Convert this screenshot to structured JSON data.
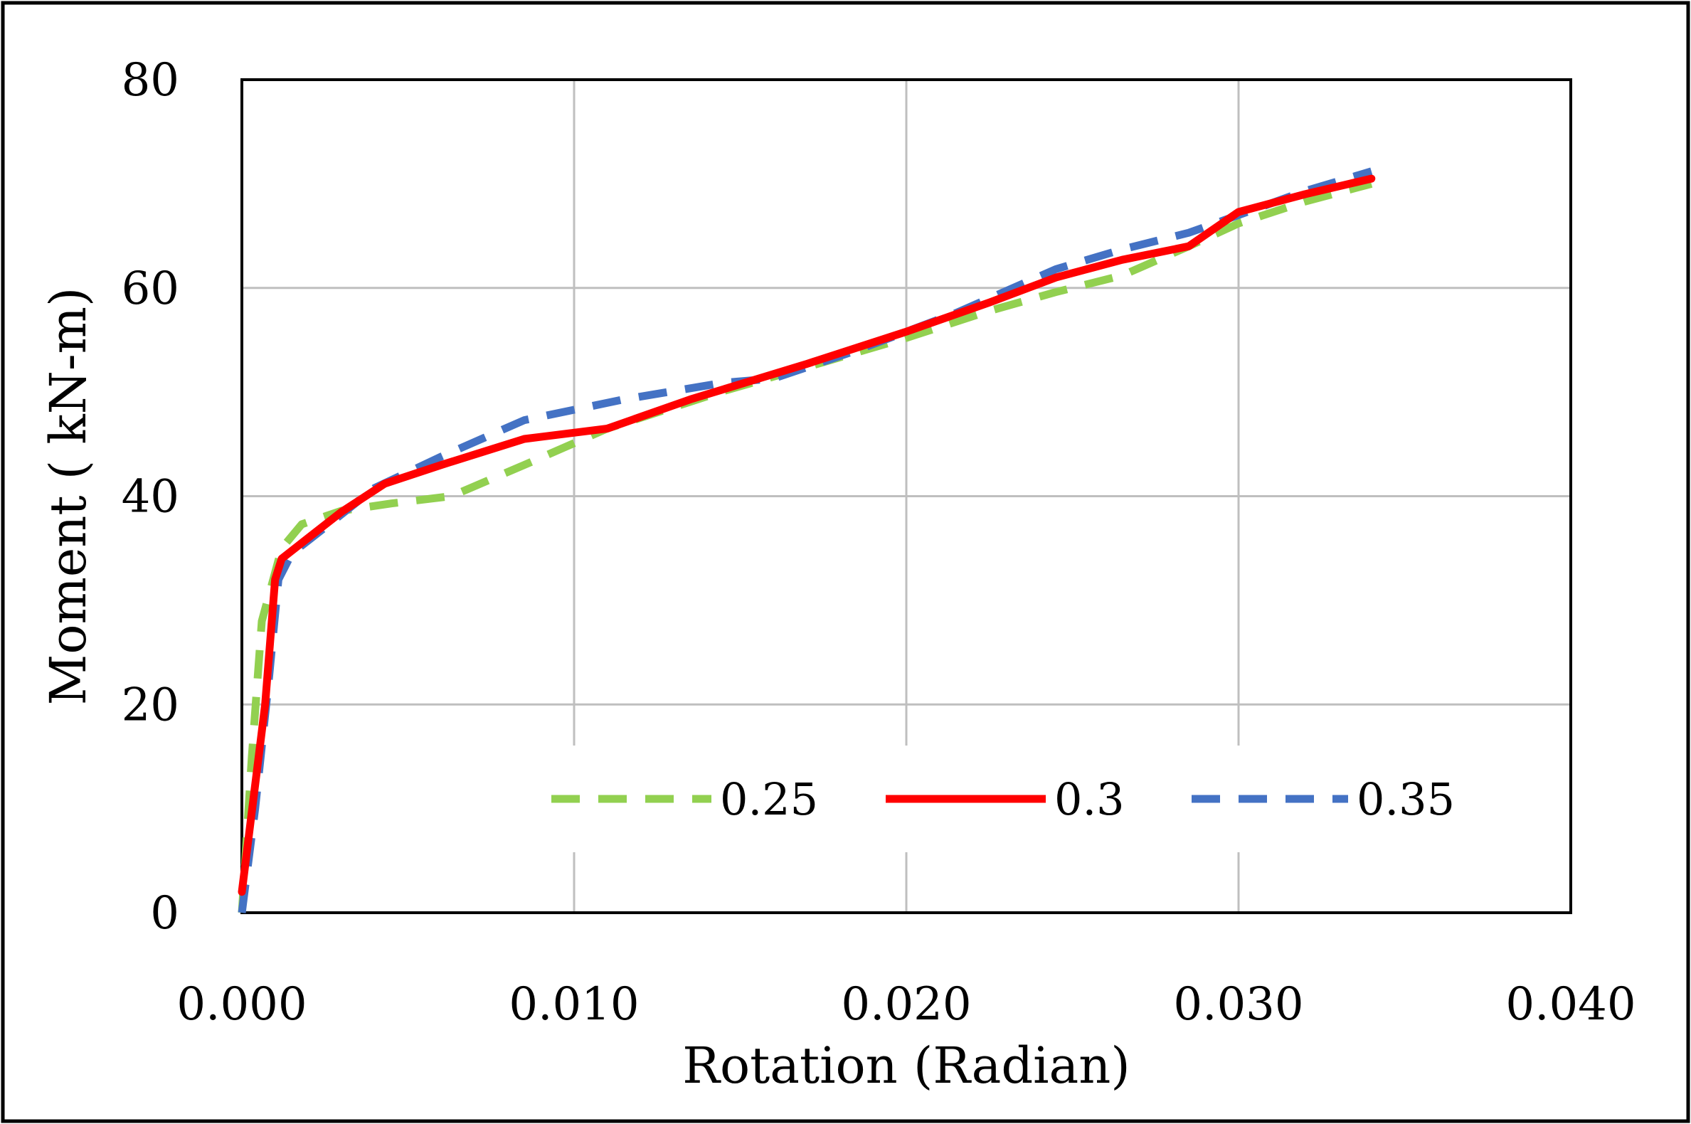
{
  "chart_data": {
    "type": "line",
    "title": "",
    "xlabel": "Rotation (Radian)",
    "ylabel": "Moment ( kN-m)",
    "xlim": [
      0,
      0.04
    ],
    "ylim": [
      0,
      80
    ],
    "x_ticks": [
      0,
      0.01,
      0.02,
      0.03,
      0.04
    ],
    "y_ticks": [
      0,
      20,
      40,
      60,
      80
    ],
    "x_tick_labels": [
      "0.000",
      "0.010",
      "0.020",
      "0.030",
      "0.040"
    ],
    "y_tick_labels": [
      "0",
      "20",
      "40",
      "60",
      "80"
    ],
    "grid": true,
    "legend_position": "bottom-right inside",
    "series": [
      {
        "name": "0.25",
        "color": "#92D050",
        "style": "dashed",
        "points": [
          [
            0.0,
            0
          ],
          [
            0.0003,
            15
          ],
          [
            0.0006,
            28
          ],
          [
            0.0012,
            35
          ],
          [
            0.0018,
            37.3
          ],
          [
            0.003,
            38.6
          ],
          [
            0.0045,
            39.3
          ],
          [
            0.0063,
            40
          ],
          [
            0.0085,
            43
          ],
          [
            0.011,
            46.5
          ],
          [
            0.0145,
            50.1
          ],
          [
            0.017,
            52.4
          ],
          [
            0.02,
            55.2
          ],
          [
            0.0225,
            57.8
          ],
          [
            0.0245,
            59.6
          ],
          [
            0.0265,
            61.2
          ],
          [
            0.0285,
            64
          ],
          [
            0.03,
            66.2
          ],
          [
            0.032,
            68.3
          ],
          [
            0.034,
            70
          ]
        ]
      },
      {
        "name": "0.3",
        "color": "#FF0000",
        "style": "solid",
        "points": [
          [
            0.0,
            2
          ],
          [
            0.0007,
            20
          ],
          [
            0.001,
            32
          ],
          [
            0.0012,
            34
          ],
          [
            0.002,
            36
          ],
          [
            0.003,
            38.5
          ],
          [
            0.0043,
            41.2
          ],
          [
            0.006,
            43
          ],
          [
            0.0085,
            45.5
          ],
          [
            0.011,
            46.5
          ],
          [
            0.0135,
            49.3
          ],
          [
            0.017,
            52.7
          ],
          [
            0.02,
            55.8
          ],
          [
            0.0225,
            58.6
          ],
          [
            0.0245,
            61
          ],
          [
            0.0265,
            62.7
          ],
          [
            0.0285,
            64
          ],
          [
            0.03,
            67.3
          ],
          [
            0.032,
            69
          ],
          [
            0.034,
            70.5
          ]
        ]
      },
      {
        "name": "0.35",
        "color": "#4472C4",
        "style": "dashed",
        "points": [
          [
            0.0,
            0
          ],
          [
            0.0004,
            10
          ],
          [
            0.0008,
            22
          ],
          [
            0.0011,
            32
          ],
          [
            0.0015,
            34.5
          ],
          [
            0.0025,
            37
          ],
          [
            0.004,
            40.8
          ],
          [
            0.006,
            43.8
          ],
          [
            0.0085,
            47.3
          ],
          [
            0.0115,
            49.3
          ],
          [
            0.0145,
            50.9
          ],
          [
            0.016,
            51.3
          ],
          [
            0.0185,
            54
          ],
          [
            0.0215,
            57.6
          ],
          [
            0.0245,
            61.8
          ],
          [
            0.0265,
            63.7
          ],
          [
            0.0285,
            65.3
          ],
          [
            0.03,
            67
          ],
          [
            0.032,
            69.3
          ],
          [
            0.034,
            71.2
          ]
        ]
      }
    ]
  }
}
